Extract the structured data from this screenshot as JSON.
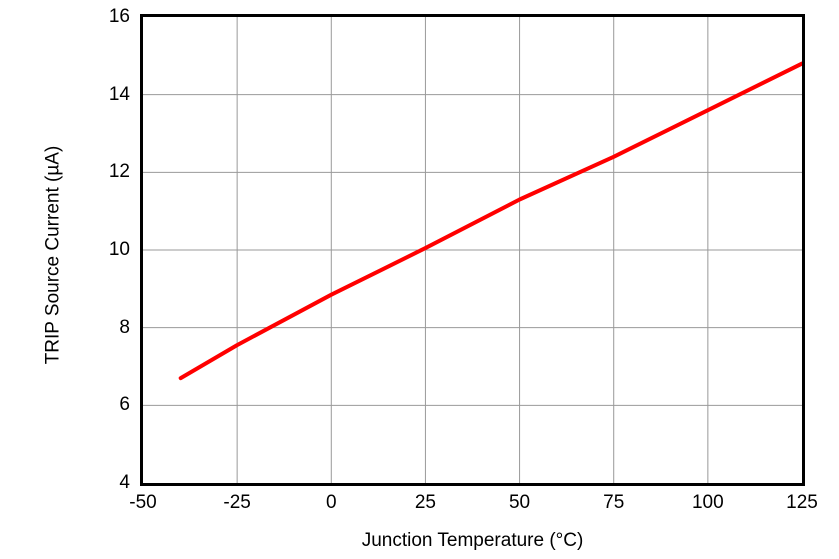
{
  "chart_data": {
    "type": "line",
    "title": "",
    "xlabel": "Junction Temperature (°C)",
    "ylabel": "TRIP Source Current (µA)",
    "xlim": [
      -50,
      125
    ],
    "ylim": [
      4,
      16
    ],
    "xticks": [
      -50,
      -25,
      0,
      25,
      50,
      75,
      100,
      125
    ],
    "yticks": [
      4,
      6,
      8,
      10,
      12,
      14,
      16
    ],
    "grid": true,
    "legend_position": "none",
    "series": [
      {
        "name": "trip-source-current",
        "color": "#FF0000",
        "line_width": 4,
        "x": [
          -40,
          -25,
          0,
          25,
          50,
          75,
          100,
          125
        ],
        "y": [
          6.7,
          7.55,
          8.85,
          10.05,
          11.3,
          12.4,
          13.6,
          14.8
        ]
      }
    ]
  },
  "colors": {
    "line": "#FF0000",
    "grid": "#999999",
    "frame": "#000000",
    "background": "#FFFFFF",
    "text": "#000000"
  }
}
